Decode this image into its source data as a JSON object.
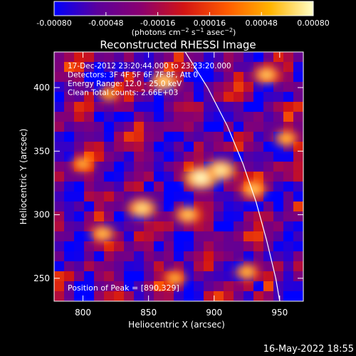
{
  "chart_data": {
    "type": "heatmap",
    "title": "Reconstructed RHESSI Image",
    "xlabel": "Heliocentric X (arcsec)",
    "ylabel": "Heliocentric Y (arcsec)",
    "xlim": [
      778,
      968
    ],
    "ylim": [
      232,
      428
    ],
    "x_ticks": [
      800,
      850,
      900,
      950
    ],
    "y_ticks": [
      250,
      300,
      350,
      400
    ],
    "colorbar": {
      "min": -0.0008,
      "max": 0.0008,
      "ticks": [
        "-0.00080",
        "-0.00048",
        "-0.00016",
        "0.00016",
        "0.00048",
        "0.00080"
      ],
      "units_prefix": "(photons cm",
      "units_sup1": "−2",
      "units_mid1": " s",
      "units_sup2": "−1",
      "units_mid2": " asec",
      "units_sup3": "−2",
      "units_suffix": ")",
      "colors": [
        "#0000ff",
        "#5b009c",
        "#8a0070",
        "#d21414",
        "#ff5a00",
        "#ffb400",
        "#ffffc8"
      ]
    },
    "annotations": [
      "17-Dec-2012 23:20:44.000 to 23:23:20.000",
      "Detectors: 3F 4F 5F 6F 7F 8F, Att 0",
      "Energy Range: 12.0 - 25.0 keV",
      "Clean     Total counts: 2.66E+03"
    ],
    "peak_label": "Position of Peak = [890,329]",
    "peak": [
      890,
      329
    ],
    "hot_spots": [
      {
        "x": 890,
        "y": 329,
        "level": 1.0
      },
      {
        "x": 905,
        "y": 335,
        "level": 0.85
      },
      {
        "x": 862,
        "y": 405,
        "level": 0.7
      },
      {
        "x": 845,
        "y": 305,
        "level": 0.75
      },
      {
        "x": 880,
        "y": 300,
        "level": 0.6
      },
      {
        "x": 940,
        "y": 410,
        "level": 0.6
      },
      {
        "x": 815,
        "y": 285,
        "level": 0.55
      },
      {
        "x": 930,
        "y": 320,
        "level": 0.6
      },
      {
        "x": 925,
        "y": 255,
        "level": 0.5
      },
      {
        "x": 800,
        "y": 340,
        "level": 0.45
      },
      {
        "x": 955,
        "y": 360,
        "level": 0.5
      },
      {
        "x": 870,
        "y": 250,
        "level": 0.45
      },
      {
        "x": 820,
        "y": 395,
        "level": 0.4
      }
    ],
    "limb_points": [
      [
        878,
        428
      ],
      [
        895,
        400
      ],
      [
        910,
        370
      ],
      [
        922,
        340
      ],
      [
        932,
        310
      ],
      [
        940,
        280
      ],
      [
        947,
        250
      ],
      [
        950,
        232
      ]
    ]
  },
  "footer": {
    "date": "16-May-2022 18:55"
  }
}
